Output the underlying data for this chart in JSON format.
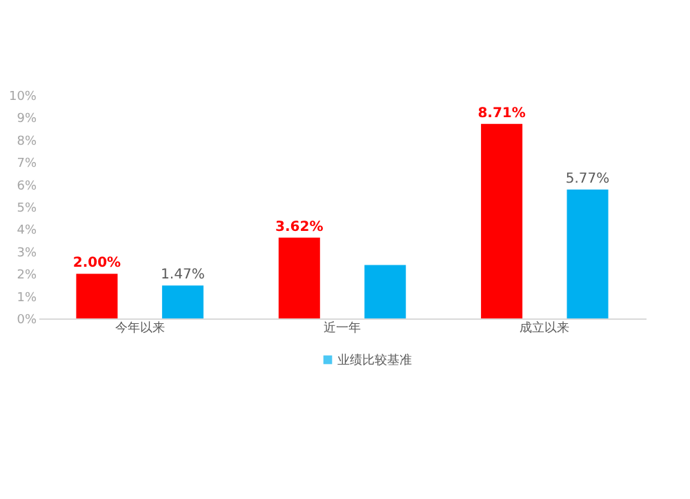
{
  "chart_data": {
    "type": "bar",
    "categories": [
      "今年以来",
      "近一年",
      "成立以来"
    ],
    "series": [
      {
        "color": "#ff0000",
        "values": [
          2.0,
          3.62,
          8.71
        ],
        "value_labels": [
          "2.00%",
          "3.62%",
          "8.71%"
        ]
      },
      {
        "name": "业绩比较基准",
        "color": "#00b0f0",
        "values": [
          1.47,
          2.39,
          5.77
        ],
        "value_labels": [
          "1.47%",
          null,
          "5.77%"
        ]
      }
    ],
    "ylim": [
      0,
      10
    ],
    "yticks": [
      {
        "value": 0,
        "label": "0%"
      },
      {
        "value": 1,
        "label": "1%"
      },
      {
        "value": 2,
        "label": "2%"
      },
      {
        "value": 3,
        "label": "3%"
      },
      {
        "value": 4,
        "label": "4%"
      },
      {
        "value": 5,
        "label": "5%"
      },
      {
        "value": 6,
        "label": "6%"
      },
      {
        "value": 7,
        "label": "7%"
      },
      {
        "value": 8,
        "label": "8%"
      },
      {
        "value": 9,
        "label": "9%"
      },
      {
        "value": 10,
        "label": "10%"
      }
    ],
    "grid": false,
    "legend": "bottom"
  }
}
